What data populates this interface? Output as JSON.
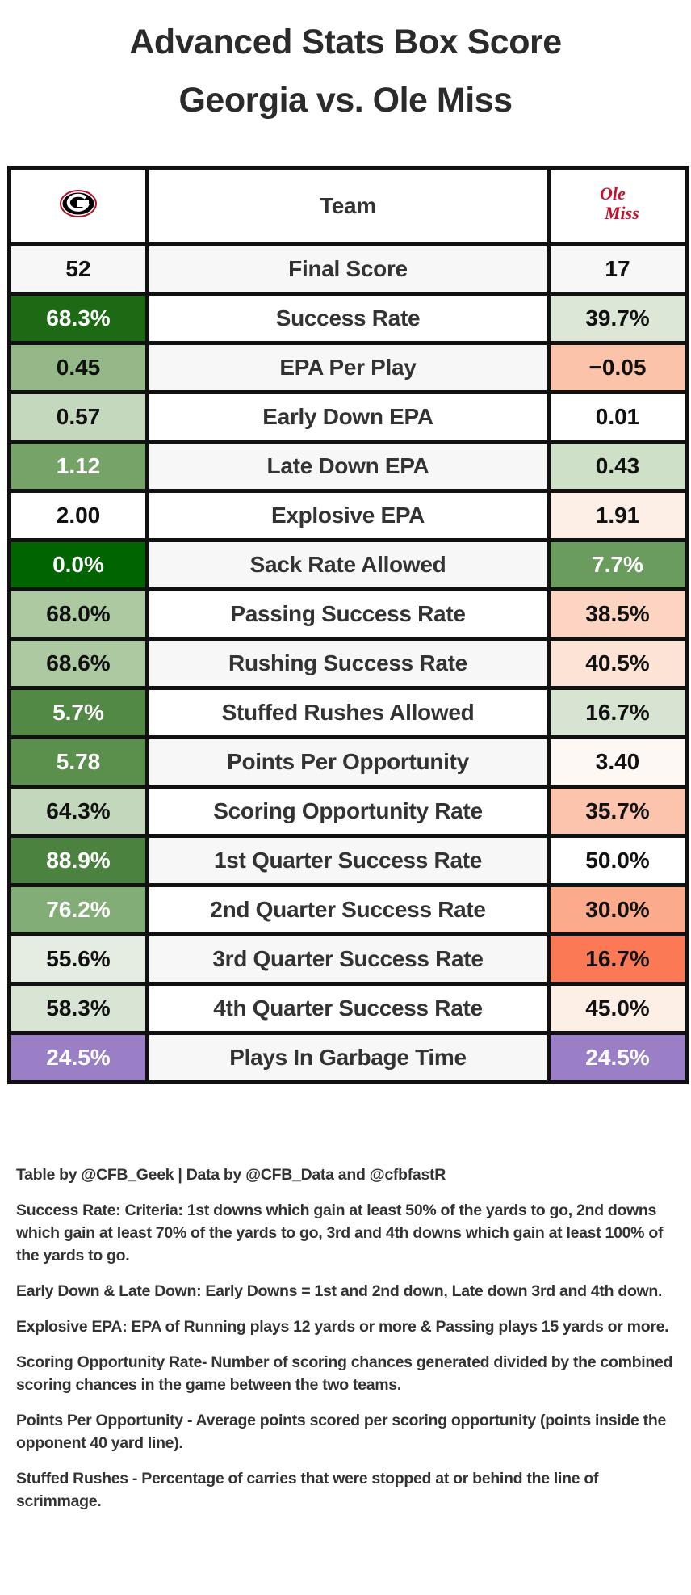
{
  "title": {
    "line1": "Advanced Stats Box Score",
    "line2": "Georgia vs. Ole Miss"
  },
  "header": {
    "left_logo": "Georgia G logo",
    "center": "Team",
    "right_logo": "Ole Miss"
  },
  "rows": [
    {
      "label": "Final Score",
      "left": "52",
      "right": "17",
      "left_color": "#f7f7f7",
      "right_color": "#f7f7f7",
      "left_light": false,
      "right_light": false
    },
    {
      "label": "Success Rate",
      "left": "68.3%",
      "right": "39.7%",
      "left_color": "#1c6a14",
      "right_color": "#dde7d8",
      "left_light": true,
      "right_light": false
    },
    {
      "label": "EPA Per Play",
      "left": "0.45",
      "right": "−0.05",
      "left_color": "#94b887",
      "right_color": "#fcc3ab",
      "left_light": false,
      "right_light": false
    },
    {
      "label": "Early Down EPA",
      "left": "0.57",
      "right": "0.01",
      "left_color": "#c3d8bc",
      "right_color": "#ffffff",
      "left_light": false,
      "right_light": false
    },
    {
      "label": "Late Down EPA",
      "left": "1.12",
      "right": "0.43",
      "left_color": "#76a368",
      "right_color": "#cfe0c8",
      "left_light": true,
      "right_light": false
    },
    {
      "label": "Explosive EPA",
      "left": "2.00",
      "right": "1.91",
      "left_color": "#ffffff",
      "right_color": "#fdeee6",
      "left_light": false,
      "right_light": false
    },
    {
      "label": "Sack Rate Allowed",
      "left": "0.0%",
      "right": "7.7%",
      "left_color": "#006400",
      "right_color": "#6a9c5d",
      "left_light": true,
      "right_light": true
    },
    {
      "label": "Passing Success Rate",
      "left": "68.0%",
      "right": "38.5%",
      "left_color": "#acc9a2",
      "right_color": "#fdd3c2",
      "left_light": false,
      "right_light": false
    },
    {
      "label": "Rushing Success Rate",
      "left": "68.6%",
      "right": "40.5%",
      "left_color": "#acc9a2",
      "right_color": "#fde2d6",
      "left_light": false,
      "right_light": false
    },
    {
      "label": "Stuffed Rushes Allowed",
      "left": "5.7%",
      "right": "16.7%",
      "left_color": "#528a45",
      "right_color": "#d7e4d1",
      "left_light": true,
      "right_light": false
    },
    {
      "label": "Points Per Opportunity",
      "left": "5.78",
      "right": "3.40",
      "left_color": "#5a8f4c",
      "right_color": "#fef8f5",
      "left_light": true,
      "right_light": false
    },
    {
      "label": "Scoring Opportunity Rate",
      "left": "64.3%",
      "right": "35.7%",
      "left_color": "#c2d7bb",
      "right_color": "#fcc4ad",
      "left_light": false,
      "right_light": false
    },
    {
      "label": "1st Quarter Success Rate",
      "left": "88.9%",
      "right": "50.0%",
      "left_color": "#4b8240",
      "right_color": "#ffffff",
      "left_light": true,
      "right_light": false
    },
    {
      "label": "2nd Quarter Success Rate",
      "left": "76.2%",
      "right": "30.0%",
      "left_color": "#83ad76",
      "right_color": "#fcaa8c",
      "left_light": true,
      "right_light": false
    },
    {
      "label": "3rd Quarter Success Rate",
      "left": "55.6%",
      "right": "16.7%",
      "left_color": "#e5ede2",
      "right_color": "#fb7a55",
      "left_light": false,
      "right_light": false
    },
    {
      "label": "4th Quarter Success Rate",
      "left": "58.3%",
      "right": "45.0%",
      "left_color": "#d9e5d4",
      "right_color": "#fdeee6",
      "left_light": false,
      "right_light": false
    },
    {
      "label": "Plays In Garbage Time",
      "left": "24.5%",
      "right": "24.5%",
      "left_color": "#9a7fc6",
      "right_color": "#9a7fc6",
      "left_light": true,
      "right_light": true
    }
  ],
  "notes": [
    "Table by @CFB_Geek | Data by @CFB_Data and @cfbfastR",
    "Success Rate: Criteria: 1st downs which gain at least 50% of the yards to go, 2nd downs which gain at least 70% of the yards to go, 3rd and 4th downs which gain at least 100% of the yards to go.",
    "Early Down & Late Down: Early Downs = 1st and 2nd down, Late down 3rd and 4th down.",
    "Explosive EPA: EPA of Running plays 12 yards or more & Passing plays 15 yards or more.",
    "Scoring Opportunity Rate- Number of scoring chances generated divided by the combined scoring chances in the game between the two teams.",
    "Points Per Opportunity - Average points scored per scoring opportunity (points inside the opponent 40 yard line).",
    "Stuffed Rushes - Percentage of carries that were stopped at or behind the line of scrimmage."
  ]
}
